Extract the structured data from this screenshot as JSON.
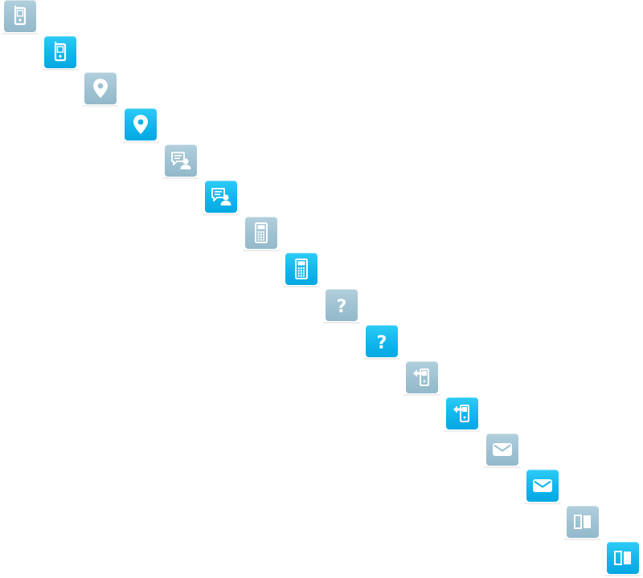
{
  "icons": [
    {
      "name": "phone-icon",
      "state": "muted"
    },
    {
      "name": "phone-icon",
      "state": "active"
    },
    {
      "name": "location-pin-icon",
      "state": "muted"
    },
    {
      "name": "location-pin-icon",
      "state": "active"
    },
    {
      "name": "chat-user-icon",
      "state": "muted"
    },
    {
      "name": "chat-user-icon",
      "state": "active"
    },
    {
      "name": "calculator-icon",
      "state": "muted"
    },
    {
      "name": "calculator-icon",
      "state": "active"
    },
    {
      "name": "help-question-icon",
      "state": "muted"
    },
    {
      "name": "help-question-icon",
      "state": "active"
    },
    {
      "name": "phone-transfer-icon",
      "state": "muted"
    },
    {
      "name": "phone-transfer-icon",
      "state": "active"
    },
    {
      "name": "mail-envelope-icon",
      "state": "muted"
    },
    {
      "name": "mail-envelope-icon",
      "state": "active"
    },
    {
      "name": "split-view-icon",
      "state": "muted"
    },
    {
      "name": "split-view-icon",
      "state": "active"
    }
  ],
  "colors": {
    "muted_top": "#b2cfdc",
    "muted_bottom": "#93b9ca",
    "active_top": "#2ecbf6",
    "active_bottom": "#05a8e2",
    "glyph": "#ffffff"
  }
}
